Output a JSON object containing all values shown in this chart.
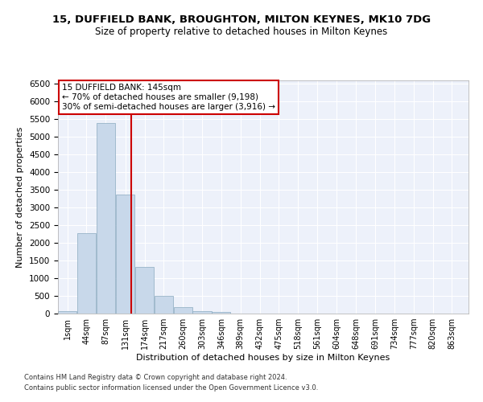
{
  "title1": "15, DUFFIELD BANK, BROUGHTON, MILTON KEYNES, MK10 7DG",
  "title2": "Size of property relative to detached houses in Milton Keynes",
  "xlabel": "Distribution of detached houses by size in Milton Keynes",
  "ylabel": "Number of detached properties",
  "footer1": "Contains HM Land Registry data © Crown copyright and database right 2024.",
  "footer2": "Contains public sector information licensed under the Open Government Licence v3.0.",
  "annotation_title": "15 DUFFIELD BANK: 145sqm",
  "annotation_line1": "← 70% of detached houses are smaller (9,198)",
  "annotation_line2": "30% of semi-detached houses are larger (3,916) →",
  "bar_color": "#c8d8ea",
  "bar_edge_color": "#8aaac0",
  "vline_color": "#cc0000",
  "vline_x": 145,
  "background_color": "#edf1fa",
  "grid_color": "#ffffff",
  "categories": [
    1,
    44,
    87,
    131,
    174,
    217,
    260,
    303,
    346,
    389,
    432,
    475,
    518,
    561,
    604,
    648,
    691,
    734,
    777,
    820,
    863
  ],
  "cat_labels": [
    "1sqm",
    "44sqm",
    "87sqm",
    "131sqm",
    "174sqm",
    "217sqm",
    "260sqm",
    "303sqm",
    "346sqm",
    "389sqm",
    "432sqm",
    "475sqm",
    "518sqm",
    "561sqm",
    "604sqm",
    "648sqm",
    "691sqm",
    "734sqm",
    "777sqm",
    "820sqm",
    "863sqm"
  ],
  "values": [
    75,
    2280,
    5400,
    3370,
    1310,
    490,
    185,
    75,
    50,
    0,
    0,
    0,
    0,
    0,
    0,
    0,
    0,
    0,
    0,
    0,
    0
  ],
  "ylim": [
    0,
    6600
  ],
  "yticks": [
    0,
    500,
    1000,
    1500,
    2000,
    2500,
    3000,
    3500,
    4000,
    4500,
    5000,
    5500,
    6000,
    6500
  ],
  "bin_width": 43
}
